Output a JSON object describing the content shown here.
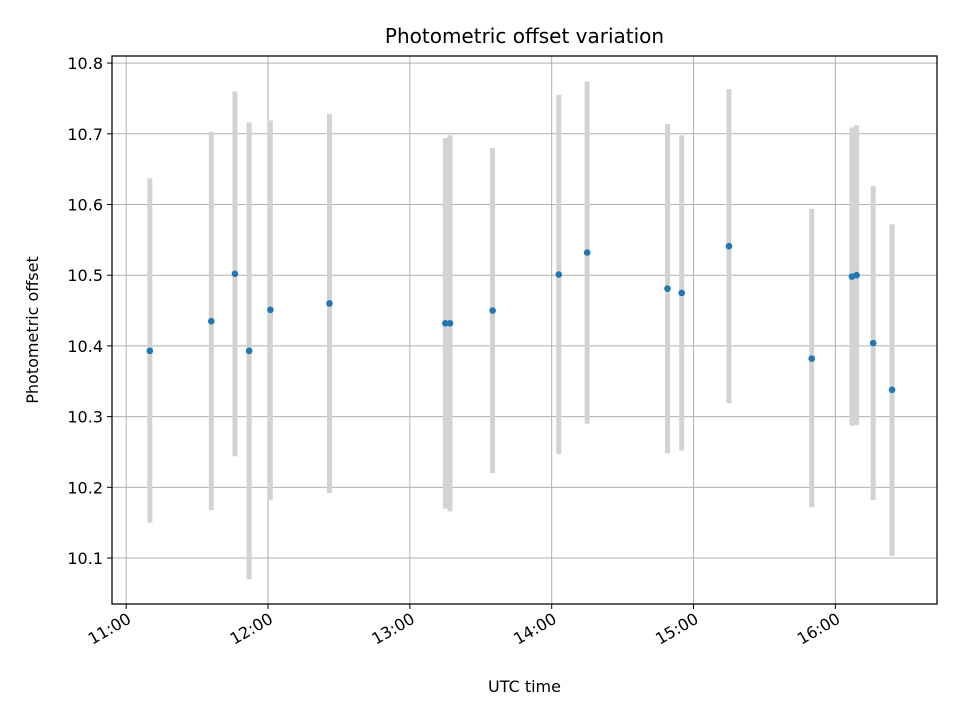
{
  "chart_data": {
    "type": "scatter",
    "title": "Photometric offset variation",
    "xlabel": "UTC time",
    "ylabel": "Photometric offset",
    "x_ticks": [
      "11:00",
      "12:00",
      "13:00",
      "14:00",
      "15:00",
      "16:00"
    ],
    "y_ticks": [
      "10.1",
      "10.2",
      "10.3",
      "10.4",
      "10.5",
      "10.6",
      "10.7",
      "10.8"
    ],
    "xlim": [
      "10:54",
      "16:43"
    ],
    "ylim": [
      10.035,
      10.81
    ],
    "grid": true,
    "series": [
      {
        "values": [
          {
            "x": "11:10",
            "y": 10.393,
            "low": 10.15,
            "high": 10.637
          },
          {
            "x": "11:36",
            "y": 10.435,
            "low": 10.168,
            "high": 10.703
          },
          {
            "x": "11:46",
            "y": 10.502,
            "low": 10.244,
            "high": 10.76
          },
          {
            "x": "11:52",
            "y": 10.393,
            "low": 10.07,
            "high": 10.716
          },
          {
            "x": "12:01",
            "y": 10.451,
            "low": 10.182,
            "high": 10.719
          },
          {
            "x": "12:26",
            "y": 10.46,
            "low": 10.192,
            "high": 10.728
          },
          {
            "x": "13:15",
            "y": 10.432,
            "low": 10.17,
            "high": 10.694
          },
          {
            "x": "13:17",
            "y": 10.432,
            "low": 10.166,
            "high": 10.698
          },
          {
            "x": "13:35",
            "y": 10.45,
            "low": 10.22,
            "high": 10.68
          },
          {
            "x": "14:03",
            "y": 10.501,
            "low": 10.247,
            "high": 10.755
          },
          {
            "x": "14:15",
            "y": 10.532,
            "low": 10.29,
            "high": 10.774
          },
          {
            "x": "14:49",
            "y": 10.481,
            "low": 10.248,
            "high": 10.714
          },
          {
            "x": "14:55",
            "y": 10.475,
            "low": 10.252,
            "high": 10.698
          },
          {
            "x": "15:15",
            "y": 10.541,
            "low": 10.319,
            "high": 10.763
          },
          {
            "x": "15:50",
            "y": 10.382,
            "low": 10.172,
            "high": 10.594
          },
          {
            "x": "16:07",
            "y": 10.498,
            "low": 10.287,
            "high": 10.709
          },
          {
            "x": "16:09",
            "y": 10.5,
            "low": 10.288,
            "high": 10.712
          },
          {
            "x": "16:16",
            "y": 10.404,
            "low": 10.182,
            "high": 10.626
          },
          {
            "x": "16:24",
            "y": 10.338,
            "low": 10.103,
            "high": 10.572
          }
        ]
      }
    ],
    "colors": {
      "marker": "#1f77b4",
      "errorbar": "#d3d3d3",
      "grid": "#b0b0b0"
    }
  }
}
